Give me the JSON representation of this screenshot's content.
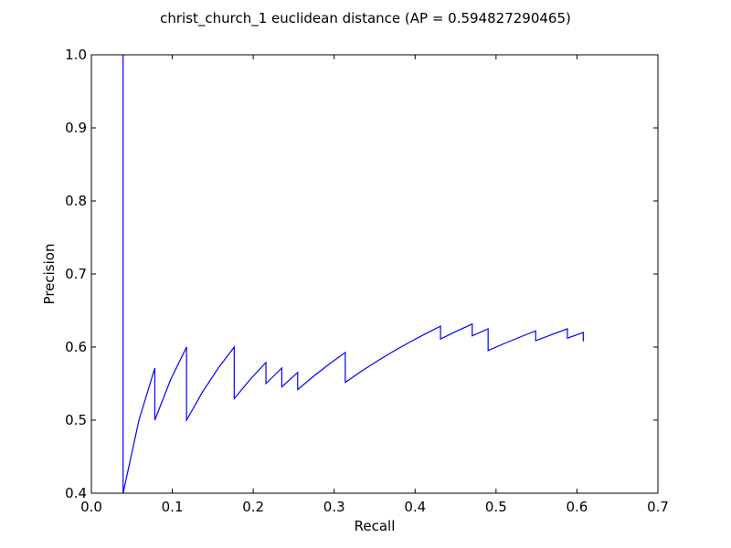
{
  "chart_data": {
    "type": "line",
    "title": "christ_church_1 euclidean distance  (AP = 0.594827290465)",
    "xlabel": "Recall",
    "ylabel": "Precision",
    "xlim": [
      0.0,
      0.7
    ],
    "ylim": [
      0.4,
      1.0
    ],
    "xticks": [
      "0.0",
      "0.1",
      "0.2",
      "0.3",
      "0.4",
      "0.5",
      "0.6",
      "0.7"
    ],
    "yticks": [
      "0.4",
      "0.5",
      "0.6",
      "0.7",
      "0.8",
      "0.9",
      "1.0"
    ],
    "grid": false,
    "line_color": "#0000ff",
    "series": [
      {
        "x": [
          0.0392,
          0.0392,
          0.0588,
          0.0784,
          0.0784,
          0.098,
          0.1176,
          0.1176,
          0.1373,
          0.1569,
          0.1765,
          0.1765,
          0.1961,
          0.2157,
          0.2157,
          0.2353,
          0.2353,
          0.2549,
          0.2549,
          0.2745,
          0.2941,
          0.3137,
          0.3137,
          0.3333,
          0.3529,
          0.3725,
          0.3922,
          0.4118,
          0.4314,
          0.4314,
          0.451,
          0.4706,
          0.4706,
          0.4902,
          0.4902,
          0.5098,
          0.5294,
          0.549,
          0.549,
          0.5686,
          0.5882,
          0.5882,
          0.6078,
          0.6078
        ],
        "y": [
          1.0,
          0.4,
          0.5,
          0.5714,
          0.5,
          0.5556,
          0.6,
          0.5,
          0.5385,
          0.5714,
          0.6,
          0.5294,
          0.5556,
          0.5789,
          0.55,
          0.5714,
          0.5455,
          0.5652,
          0.5417,
          0.56,
          0.5769,
          0.5926,
          0.5517,
          0.5667,
          0.5806,
          0.5938,
          0.6061,
          0.6176,
          0.6286,
          0.6111,
          0.6216,
          0.6316,
          0.6154,
          0.625,
          0.5952,
          0.6047,
          0.6136,
          0.6222,
          0.6087,
          0.617,
          0.625,
          0.6122,
          0.62,
          0.6078
        ]
      }
    ]
  }
}
